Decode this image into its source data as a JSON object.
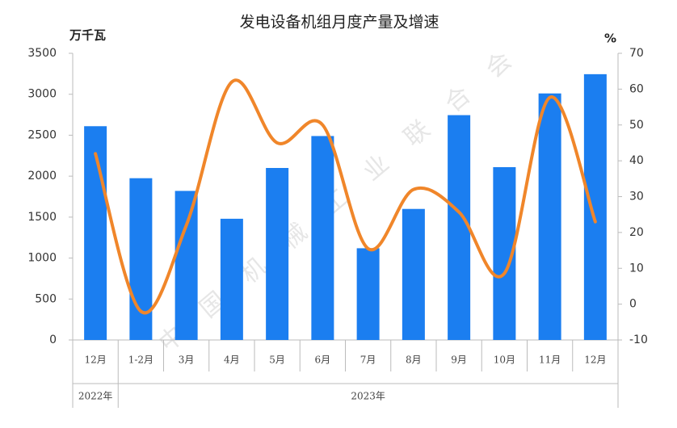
{
  "chart_data": {
    "type": "bar",
    "title": "发电设备机组月度产量及增速",
    "y_label": "万千瓦",
    "y2_label": "%",
    "watermark": "中国机械工业联合会",
    "categories": [
      "12月",
      "1-2月",
      "3月",
      "4月",
      "5月",
      "6月",
      "7月",
      "8月",
      "9月",
      "10月",
      "11月",
      "12月"
    ],
    "x_groups": [
      "2022年",
      "2023年"
    ],
    "series": [
      {
        "type": "bar",
        "color": "#1b7ef0",
        "values": [
          2610,
          1975,
          1820,
          1480,
          2100,
          2490,
          1120,
          1600,
          2745,
          2110,
          3010,
          3245
        ]
      },
      {
        "type": "line",
        "axis": "y2",
        "color": "#f0862a",
        "values": [
          42,
          -2,
          22,
          62,
          45,
          50,
          15.5,
          32,
          25.7,
          8.6,
          57.7,
          23
        ]
      }
    ],
    "ylim": [
      0,
      3500
    ],
    "yticks": [
      0,
      500,
      1000,
      1500,
      2000,
      2500,
      3000,
      3500
    ],
    "y2lim": [
      -10,
      70
    ],
    "y2ticks": [
      -10,
      0,
      10,
      20,
      30,
      40,
      50,
      60,
      70
    ],
    "grid": false
  }
}
